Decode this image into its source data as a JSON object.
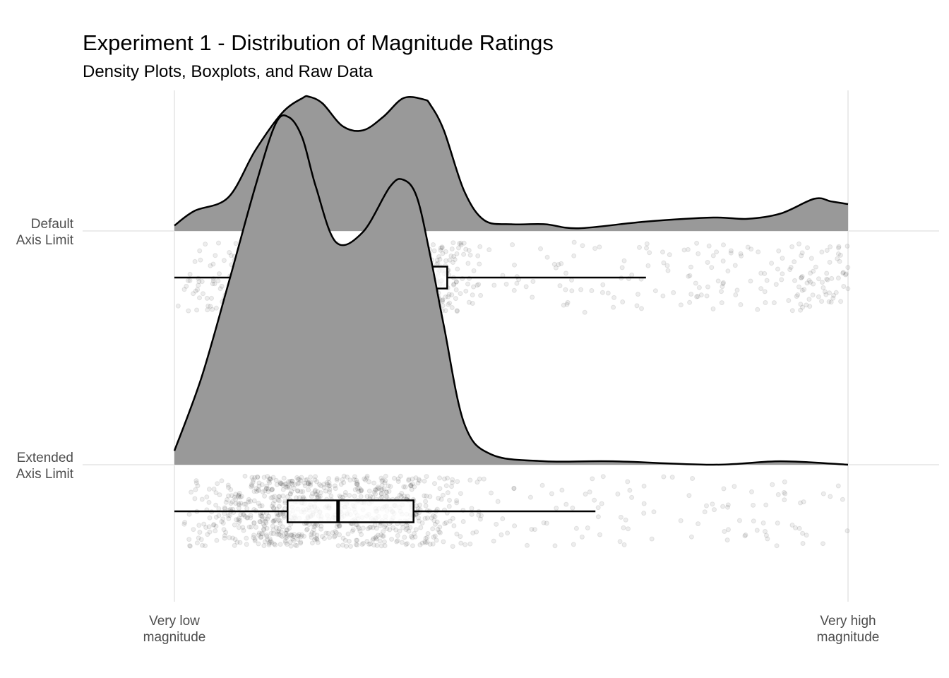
{
  "chart_data": {
    "type": "raincloud",
    "title": "Experiment 1 - Distribution of Magnitude Ratings",
    "subtitle": "Density Plots, Boxplots, and Raw Data",
    "xlabel": "",
    "ylabel": "",
    "xlim": [
      0,
      1
    ],
    "x_tick_labels": [
      {
        "value": 0,
        "lines": [
          "Very low",
          "magnitude"
        ]
      },
      {
        "value": 1,
        "lines": [
          "Very high",
          "magnitude"
        ]
      }
    ],
    "grid": "vertical gridlines at 0 and 1",
    "fill_color": "#999999",
    "groups": [
      {
        "label_lines": [
          "Default",
          "Axis Limit"
        ],
        "density": {
          "x": [
            0.0,
            0.03,
            0.08,
            0.12,
            0.16,
            0.19,
            0.2,
            0.22,
            0.25,
            0.28,
            0.31,
            0.34,
            0.37,
            0.38,
            0.4,
            0.43,
            0.46,
            0.5,
            0.55,
            0.6,
            0.7,
            0.8,
            0.85,
            0.9,
            0.95,
            0.975,
            1.0
          ],
          "y": [
            0.04,
            0.15,
            0.25,
            0.6,
            0.88,
            0.99,
            1.0,
            0.95,
            0.78,
            0.75,
            0.85,
            0.99,
            0.98,
            0.94,
            0.75,
            0.3,
            0.08,
            0.05,
            0.05,
            0.02,
            0.07,
            0.1,
            0.09,
            0.13,
            0.24,
            0.22,
            0.2
          ]
        },
        "boxplot": {
          "whisker_low": 0.0,
          "q1": 0.2,
          "median": 0.31,
          "q3": 0.405,
          "whisker_high": 0.7
        },
        "points_max_density_at": [
          0.04,
          0.4
        ]
      },
      {
        "label_lines": [
          "Extended",
          "Axis Limit"
        ],
        "density": {
          "x": [
            0.0,
            0.04,
            0.08,
            0.12,
            0.15,
            0.17,
            0.19,
            0.21,
            0.24,
            0.28,
            0.32,
            0.34,
            0.36,
            0.38,
            0.4,
            0.43,
            0.47,
            0.55,
            0.65,
            0.8,
            0.9,
            1.0
          ],
          "y": [
            0.04,
            0.25,
            0.52,
            0.8,
            0.98,
            1.0,
            0.94,
            0.8,
            0.64,
            0.67,
            0.8,
            0.82,
            0.77,
            0.6,
            0.4,
            0.12,
            0.03,
            0.01,
            0.01,
            0.0,
            0.01,
            0.0
          ]
        },
        "boxplot": {
          "whisker_low": 0.0,
          "q1": 0.168,
          "median": 0.243,
          "q3": 0.355,
          "whisker_high": 0.625
        },
        "points_max_density_at": [
          0.04,
          0.43
        ]
      }
    ]
  }
}
